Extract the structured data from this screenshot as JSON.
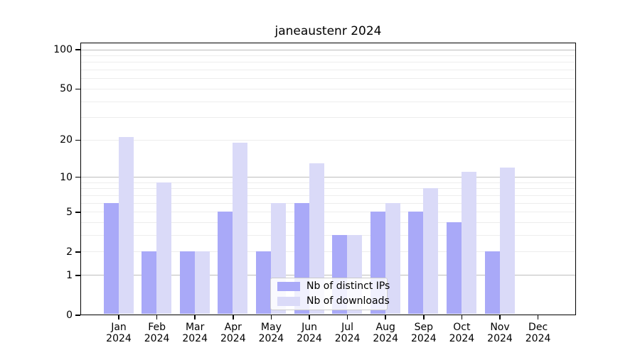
{
  "chart_data": {
    "type": "bar",
    "title": "janeaustenr 2024",
    "year": "2024",
    "categories": [
      "Jan",
      "Feb",
      "Mar",
      "Apr",
      "May",
      "Jun",
      "Jul",
      "Aug",
      "Sep",
      "Oct",
      "Nov",
      "Dec"
    ],
    "series": [
      {
        "name": "Nb of distinct IPs",
        "color": "#a9a9f8",
        "values": [
          6,
          2,
          2,
          5,
          2,
          6,
          3,
          5,
          5,
          4,
          2,
          0
        ]
      },
      {
        "name": "Nb of downloads",
        "color": "#dadaf8",
        "values": [
          21,
          9,
          2,
          19,
          6,
          13,
          3,
          6,
          8,
          11,
          12,
          0
        ]
      }
    ],
    "yscale": "log1p",
    "ylim": [
      0,
      113
    ],
    "yticks": [
      100,
      50,
      20,
      10,
      5,
      2,
      1,
      0
    ],
    "major_gridlines": [
      1,
      10,
      100
    ],
    "minor_gridlines": [
      2,
      3,
      4,
      5,
      6,
      7,
      8,
      9,
      20,
      30,
      40,
      50,
      60,
      70,
      80,
      90
    ],
    "grid": "on",
    "legend_position": "lower center",
    "colors": {
      "major_grid": "#bdbdbd",
      "minor_grid": "#ededed",
      "spine": "#000000",
      "legend_border": "#cccccc"
    }
  }
}
